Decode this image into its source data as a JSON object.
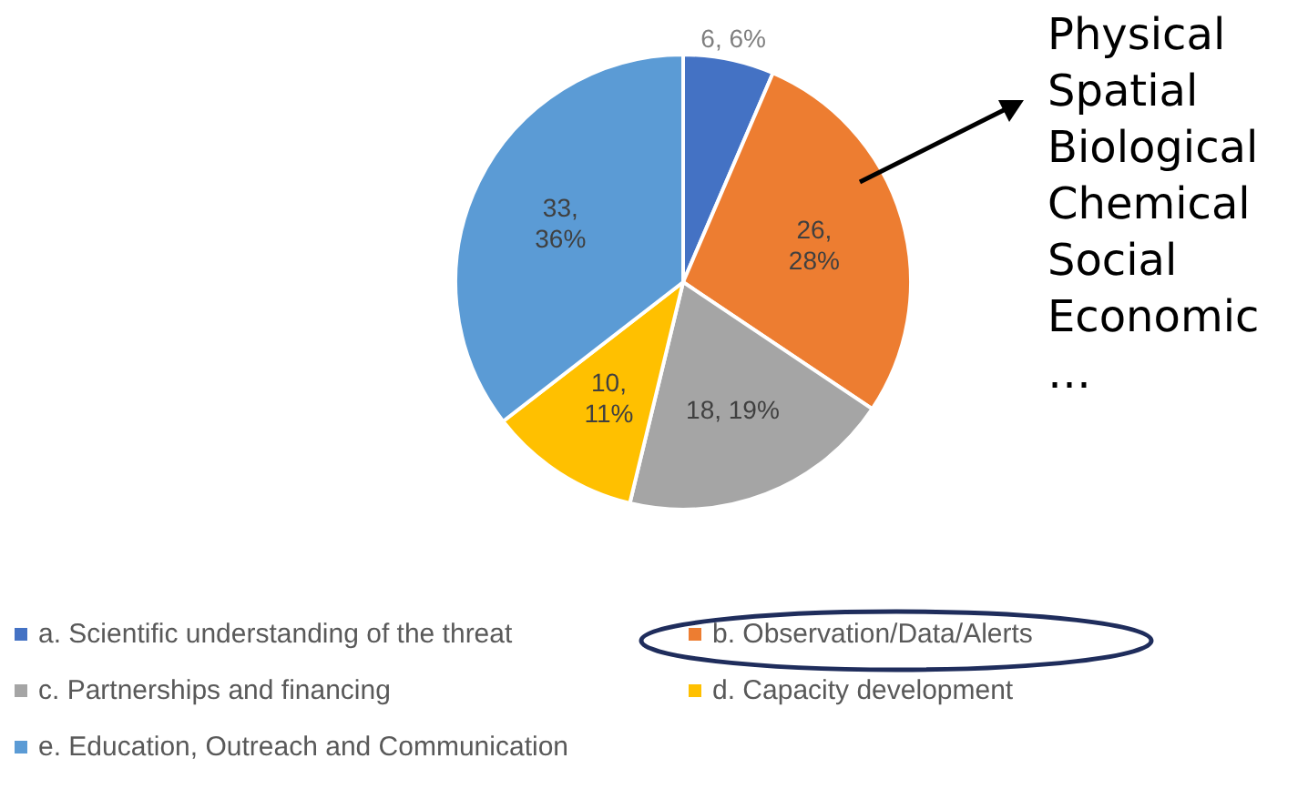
{
  "chart_data": {
    "type": "pie",
    "categories": [
      "a. Scientific understanding of the threat",
      "b. Observation/Data/Alerts",
      "c. Partnerships and financing",
      "d. Capacity development",
      "e. Education, Outreach and Communication"
    ],
    "values": [
      6,
      26,
      18,
      10,
      33
    ],
    "colors": [
      "#4472c4",
      "#ed7d31",
      "#a5a5a5",
      "#ffc000",
      "#5b9bd5"
    ],
    "value_labels": [
      "6, 6%",
      "26, 28%",
      "18, 19%",
      "10, 11%",
      "33, 36%"
    ],
    "legend": "bottom",
    "annotations": [
      "Physical",
      "Spatial",
      "Biological",
      "Chemical",
      "Social",
      "Economic",
      "…"
    ]
  }
}
